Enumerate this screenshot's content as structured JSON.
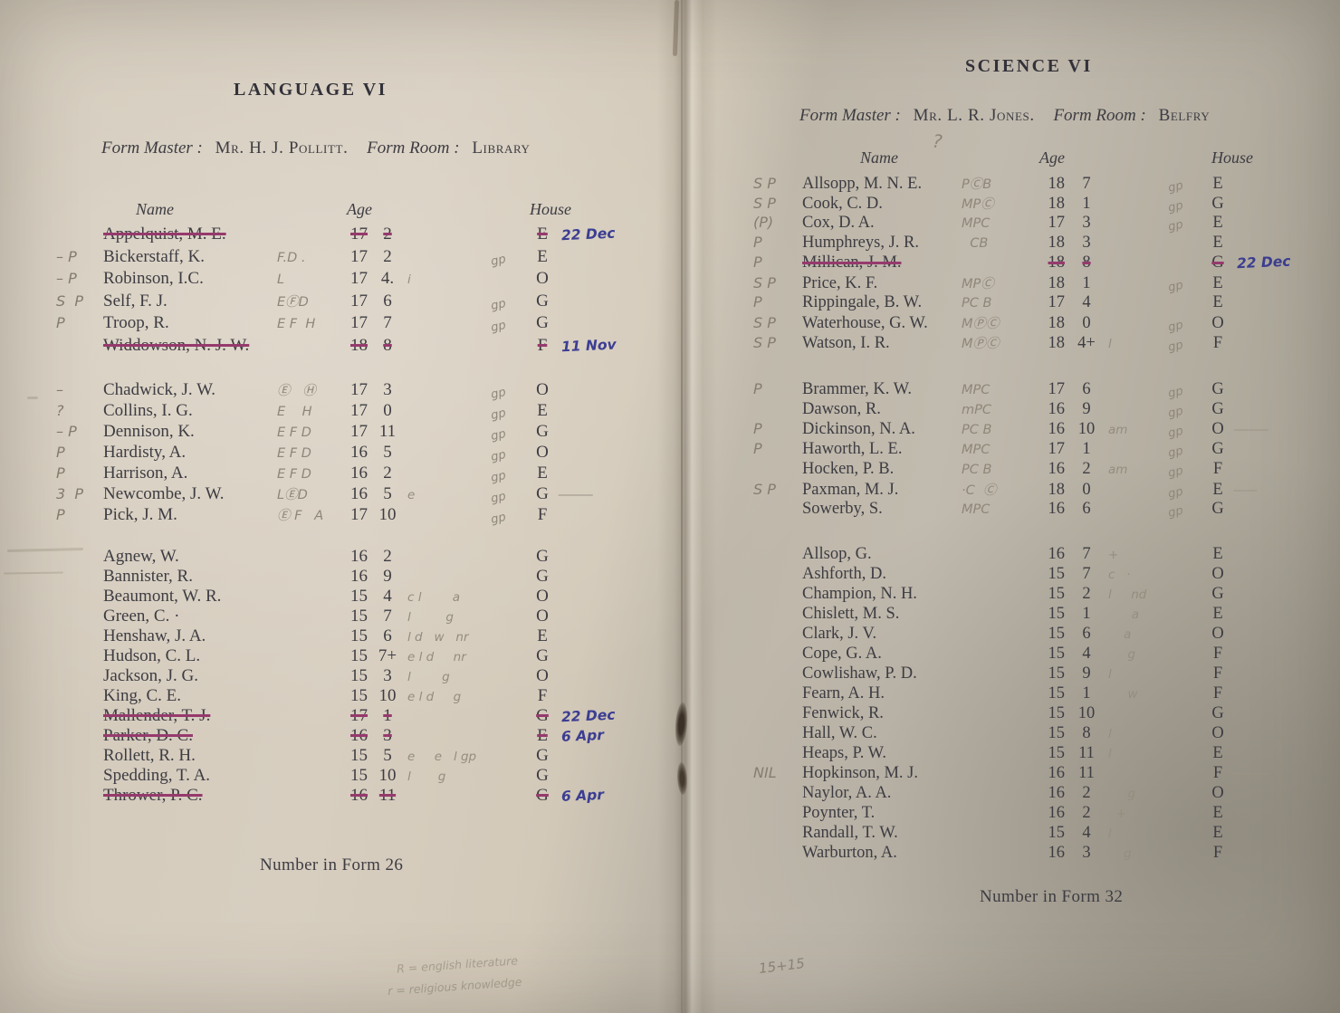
{
  "left_page": {
    "title": "LANGUAGE VI",
    "form_master_label": "Form Master :",
    "form_master": "Mr. H. J. Pollitt.",
    "form_room_label": "Form Room :",
    "form_room": "Library",
    "columns": {
      "name": "Name",
      "age": "Age",
      "house": "House"
    },
    "footer": "Number in Form 26",
    "pencil_note_line1": "R = english literature",
    "pencil_note_line2": "r = religious knowledge",
    "groups": [
      [
        {
          "margin": "",
          "name": "Appelquist, M. E.",
          "codes": "",
          "age_y": "17",
          "age_m": "2",
          "marks": "",
          "gp": "",
          "house": "E",
          "struck": true,
          "note": "22 Dec"
        },
        {
          "margin": "– P",
          "name": "Bickerstaff, K.",
          "codes": "F.D .",
          "age_y": "17",
          "age_m": "2",
          "marks": "",
          "gp": "gp",
          "house": "E"
        },
        {
          "margin": "– P",
          "name": "Robinson, I.C.",
          "codes": "L",
          "age_y": "17",
          "age_m": "4.",
          "marks": "i",
          "gp": "",
          "house": "O"
        },
        {
          "margin": "S  P",
          "name": "Self, F. J.",
          "codes": "EⒻD",
          "age_y": "17",
          "age_m": "6",
          "marks": "",
          "gp": "gp",
          "house": "G"
        },
        {
          "margin": "P",
          "name": "Troop, R.",
          "codes": "E F  H",
          "age_y": "17",
          "age_m": "7",
          "marks": "",
          "gp": "gp",
          "house": "G"
        },
        {
          "margin": "",
          "name": "Widdowson, N. J. W.",
          "codes": "",
          "age_y": "18",
          "age_m": "8",
          "marks": "",
          "gp": "",
          "house": "F",
          "struck": true,
          "note": "11 Nov"
        }
      ],
      [
        {
          "margin": "–",
          "name": "Chadwick, J. W.",
          "codes": "Ⓔ   Ⓗ",
          "age_y": "17",
          "age_m": "3",
          "gp": "gp",
          "house": "O"
        },
        {
          "margin": "?",
          "name": "Collins, I. G.",
          "codes": "E    H",
          "age_y": "17",
          "age_m": "0",
          "gp": "gp",
          "house": "E"
        },
        {
          "margin": "– P",
          "name": "Dennison, K.",
          "codes": "E F D",
          "age_y": "17",
          "age_m": "11",
          "gp": "gp",
          "house": "G"
        },
        {
          "margin": "P",
          "name": "Hardisty, A.",
          "codes": "E F D",
          "age_y": "16",
          "age_m": "5",
          "gp": "gp",
          "house": "O"
        },
        {
          "margin": "P",
          "name": "Harrison, A.",
          "codes": "E F D",
          "age_y": "16",
          "age_m": "2",
          "gp": "gp",
          "house": "E"
        },
        {
          "margin": "3  P",
          "name": "Newcombe, J. W.",
          "codes": "LⒺD",
          "age_y": "16",
          "age_m": "5",
          "marks": "e",
          "gp": "gp",
          "house": "G",
          "tail": "———"
        },
        {
          "margin": "P",
          "name": "Pick, J. M.",
          "codes": "Ⓔ F   A",
          "age_y": "17",
          "age_m": "10",
          "gp": "gp",
          "house": "F"
        }
      ],
      [
        {
          "name": "Agnew, W.",
          "age_y": "16",
          "age_m": "2",
          "house": "G"
        },
        {
          "name": "Bannister, R.",
          "age_y": "16",
          "age_m": "9",
          "house": "G"
        },
        {
          "name": "Beaumont, W. R.",
          "age_y": "15",
          "age_m": "4",
          "marks": "c l        a",
          "house": "O"
        },
        {
          "name": "Green, C. ·",
          "age_y": "15",
          "age_m": "7",
          "marks": "l         g",
          "house": "O"
        },
        {
          "name": "Henshaw, J. A.",
          "age_y": "15",
          "age_m": "6",
          "marks": "l d   w   nr",
          "house": "E"
        },
        {
          "name": "Hudson, C. L.",
          "age_y": "15",
          "age_m": "7+",
          "marks": "e l d     nr",
          "house": "G"
        },
        {
          "name": "Jackson, J. G.",
          "age_y": "15",
          "age_m": "3",
          "marks": "l        g",
          "house": "O"
        },
        {
          "name": "King, C. E.",
          "age_y": "15",
          "age_m": "10",
          "marks": "e l d     g",
          "house": "F"
        },
        {
          "name": "Mallender, T. J.",
          "age_y": "17",
          "age_m": "1",
          "house": "G",
          "struck": true,
          "note": "22 Dec"
        },
        {
          "name": "Parker, D. C.",
          "age_y": "16",
          "age_m": "3",
          "house": "E",
          "struck": true,
          "note": "6 Apr"
        },
        {
          "name": "Rollett, R. H.",
          "age_y": "15",
          "age_m": "5",
          "marks": "e     e   l gp",
          "house": "G"
        },
        {
          "name": "Spedding, T. A.",
          "age_y": "15",
          "age_m": "10",
          "marks": "l       g",
          "house": "G"
        },
        {
          "name": "Thrower, P. C.",
          "age_y": "16",
          "age_m": "11",
          "house": "G",
          "struck": true,
          "note": "6 Apr"
        }
      ]
    ]
  },
  "right_page": {
    "title": "SCIENCE VI",
    "form_master_label": "Form Master :",
    "form_master": "Mr. L. R. Jones.",
    "form_room_label": "Form Room :",
    "form_room": "Belfry",
    "columns": {
      "name": "Name",
      "age": "Age",
      "house": "House"
    },
    "header_pencil_query": "?",
    "footer": "Number in Form 32",
    "pencil_sum": "15+15",
    "groups": [
      [
        {
          "margin": "S P",
          "name": "Allsopp, M. N. E.",
          "codes": "PⒸB",
          "age_y": "18",
          "age_m": "7",
          "gp": "gp",
          "house": "E"
        },
        {
          "margin": "S P",
          "name": "Cook, C. D.",
          "codes": "MPⒸ",
          "age_y": "18",
          "age_m": "1",
          "gp": "gp",
          "house": "G"
        },
        {
          "margin": "(P)",
          "name": "Cox, D. A.",
          "codes": "MPC",
          "age_y": "17",
          "age_m": "3",
          "gp": "gp",
          "house": "E"
        },
        {
          "margin": "P",
          "name": "Humphreys, J. R.",
          "codes": "  CB",
          "age_y": "18",
          "age_m": "3",
          "house": "E"
        },
        {
          "margin": "P",
          "name": "Millican, J. M.",
          "age_y": "18",
          "age_m": "8",
          "house": "G",
          "struck": true,
          "note": "22 Dec"
        },
        {
          "margin": "S P",
          "name": "Price, K. F.",
          "codes": "MPⒸ",
          "age_y": "18",
          "age_m": "1",
          "gp": "gp",
          "house": "E"
        },
        {
          "margin": "P",
          "name": "Rippingale, B. W.",
          "codes": "PC B",
          "age_y": "17",
          "age_m": "4",
          "house": "E"
        },
        {
          "margin": "S P",
          "name": "Waterhouse, G. W.",
          "codes": "MⓅⒸ",
          "age_y": "18",
          "age_m": "0",
          "gp": "gp",
          "house": "O"
        },
        {
          "margin": "S P",
          "name": "Watson, I. R.",
          "codes": "MⓅⒸ",
          "age_y": "18",
          "age_m": "4+",
          "marks": "l",
          "gp": "gp",
          "house": "F"
        }
      ],
      [
        {
          "margin": "P",
          "name": "Brammer, K. W.",
          "codes": "MPC",
          "age_y": "17",
          "age_m": "6",
          "gp": "gp",
          "house": "G"
        },
        {
          "margin": "",
          "name": "Dawson, R.",
          "codes": "mPC",
          "age_y": "16",
          "age_m": "9",
          "gp": "gp",
          "house": "G"
        },
        {
          "margin": "P",
          "name": "Dickinson, N. A.",
          "codes": "PC B",
          "age_y": "16",
          "age_m": "10",
          "marks": "am",
          "gp": "gp",
          "house": "O",
          "tail": "———"
        },
        {
          "margin": "P",
          "name": "Haworth, L. E.",
          "codes": "MPC",
          "age_y": "17",
          "age_m": "1",
          "gp": "gp",
          "house": "G"
        },
        {
          "margin": "",
          "name": "Hocken, P. B.",
          "codes": "PC B",
          "age_y": "16",
          "age_m": "2",
          "marks": "am",
          "gp": "gp",
          "house": "F"
        },
        {
          "margin": "S P",
          "name": "Paxman, M. J.",
          "codes": "·C  Ⓒ",
          "age_y": "18",
          "age_m": "0",
          "gp": "gp",
          "house": "E",
          "tail": "——"
        },
        {
          "margin": "",
          "name": "Sowerby, S.",
          "codes": "MPC",
          "age_y": "16",
          "age_m": "6",
          "gp": "gp",
          "house": "G"
        }
      ],
      [
        {
          "name": "Allsop, G.",
          "age_y": "16",
          "age_m": "7",
          "marks": "+",
          "house": "E"
        },
        {
          "name": "Ashforth, D.",
          "age_y": "15",
          "age_m": "7",
          "marks": "c   ·",
          "house": "O"
        },
        {
          "name": "Champion, N. H.",
          "age_y": "15",
          "age_m": "2",
          "marks": "l     nd",
          "house": "G"
        },
        {
          "name": "Chislett, M. S.",
          "age_y": "15",
          "age_m": "1",
          "marks": "      a",
          "house": "E"
        },
        {
          "name": "Clark, J. V.",
          "age_y": "15",
          "age_m": "6",
          "marks": "    a",
          "house": "O"
        },
        {
          "name": "Cope, G. A.",
          "age_y": "15",
          "age_m": "4",
          "marks": "     g",
          "house": "F"
        },
        {
          "name": "Cowlishaw, P. D.",
          "age_y": "15",
          "age_m": "9",
          "marks": "l",
          "house": "F"
        },
        {
          "name": "Fearn, A. H.",
          "age_y": "15",
          "age_m": "1",
          "marks": "     w",
          "house": "F"
        },
        {
          "name": "Fenwick, R.",
          "age_y": "15",
          "age_m": "10",
          "house": "G"
        },
        {
          "name": "Hall, W. C.",
          "age_y": "15",
          "age_m": "8",
          "marks": "l",
          "house": "O"
        },
        {
          "name": "Heaps, P. W.",
          "age_y": "15",
          "age_m": "11",
          "marks": "l",
          "house": "E"
        },
        {
          "margin": "NIL",
          "name": "Hopkinson, M. J.",
          "age_y": "16",
          "age_m": "11",
          "house": "F",
          "tail": "———"
        },
        {
          "name": "Naylor, A. A.",
          "age_y": "16",
          "age_m": "2",
          "marks": "     g",
          "house": "O"
        },
        {
          "name": "Poynter, T.",
          "age_y": "16",
          "age_m": "2",
          "marks": "  +",
          "house": "E"
        },
        {
          "name": "Randall, T. W.",
          "age_y": "15",
          "age_m": "4",
          "marks": "l",
          "house": "E"
        },
        {
          "name": "Warburton, A.",
          "age_y": "16",
          "age_m": "3",
          "marks": "    g",
          "house": "F"
        }
      ]
    ]
  }
}
